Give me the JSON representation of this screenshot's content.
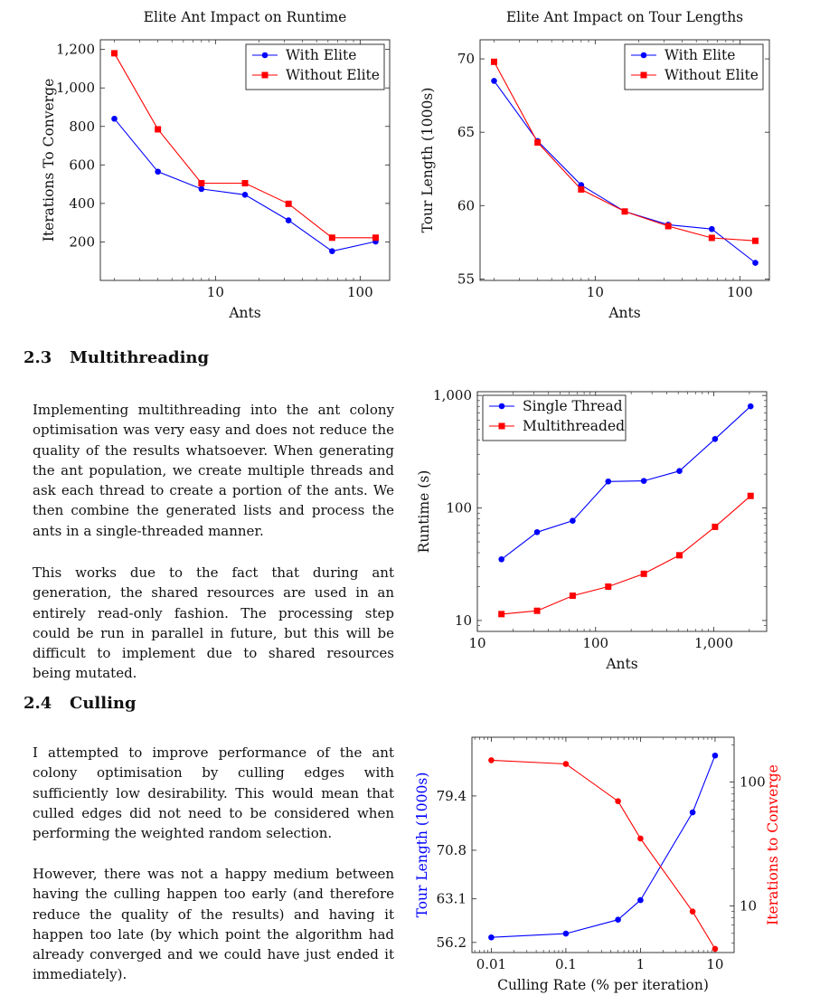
{
  "sections": [
    {
      "number": "2.3",
      "title": "Multithreading",
      "paragraphs": [
        "Implementing multithreading into the ant colony optimisation was very easy and does not reduce the quality of the results whatsoever. When generating the ant population, we create multiple threads and ask each thread to create a portion of the ants. We then combine the generated lists and process the ants in a single-threaded manner.",
        "This works due to the fact that during ant generation, the shared resources are used in an entirely read-only fashion. The processing step could be run in parallel in future, but this will be difficult to implement due to shared resources being mutated."
      ]
    },
    {
      "number": "2.4",
      "title": "Culling",
      "paragraphs": [
        "I attempted to improve performance of the ant colony optimisation by culling edges with sufficiently low desirability. This would mean that culled edges did not need to be considered when performing the weighted random selection.",
        "However, there was not a happy medium between having the culling happen too early (and therefore reduce the quality of the results) and having it happen too late (by which point the algorithm had already converged and we could have just ended it immediately)."
      ]
    }
  ],
  "colors": {
    "series_a": "#0000ff",
    "series_b": "#ff0000"
  },
  "chart_data": [
    {
      "type": "line",
      "title": "Elite Ant Impact on Runtime",
      "xlabel": "Ants",
      "ylabel": "Iterations To Converge",
      "xscale": "log",
      "xlim": [
        1.6,
        160
      ],
      "ylim": [
        0,
        1250
      ],
      "xticks": [
        10,
        100
      ],
      "xtick_labels": [
        "10",
        "100"
      ],
      "yticks": [
        200,
        400,
        600,
        800,
        1000,
        1200
      ],
      "ytick_labels": [
        "200",
        "400",
        "600",
        "800",
        "1,000",
        "1,200"
      ],
      "legend_position": "top-right",
      "x": [
        2,
        4,
        8,
        16,
        32,
        64,
        128
      ],
      "series": [
        {
          "name": "With Elite",
          "color": "#0000ff",
          "marker": "circle",
          "values": [
            840,
            565,
            475,
            445,
            312,
            152,
            202
          ]
        },
        {
          "name": "Without Elite",
          "color": "#ff0000",
          "marker": "square",
          "values": [
            1180,
            785,
            505,
            505,
            398,
            222,
            222
          ]
        }
      ]
    },
    {
      "type": "line",
      "title": "Elite Ant Impact on Tour Lengths",
      "xlabel": "Ants",
      "ylabel": "Tour Length (1000s)",
      "xscale": "log",
      "xlim": [
        1.6,
        160
      ],
      "ylim": [
        54.9,
        71.3
      ],
      "xticks": [
        10,
        100
      ],
      "xtick_labels": [
        "10",
        "100"
      ],
      "yticks": [
        55,
        60,
        65,
        70
      ],
      "ytick_labels": [
        "55",
        "60",
        "65",
        "70"
      ],
      "legend_position": "top-right",
      "x": [
        2,
        4,
        8,
        16,
        32,
        64,
        128
      ],
      "series": [
        {
          "name": "With Elite",
          "color": "#0000ff",
          "marker": "circle",
          "values": [
            68.5,
            64.4,
            61.4,
            59.6,
            58.7,
            58.4,
            56.1
          ]
        },
        {
          "name": "Without Elite",
          "color": "#ff0000",
          "marker": "square",
          "values": [
            69.8,
            64.3,
            61.1,
            59.6,
            58.6,
            57.8,
            57.6
          ]
        }
      ]
    },
    {
      "type": "line",
      "title": "",
      "xlabel": "Ants",
      "ylabel": "Runtime (s)",
      "xscale": "log",
      "yscale": "log",
      "xlim": [
        10,
        2800
      ],
      "ylim": [
        8,
        1080
      ],
      "xticks": [
        10,
        100,
        1000
      ],
      "xtick_labels": [
        "10",
        "100",
        "1,000"
      ],
      "yticks": [
        10,
        100,
        1000
      ],
      "ytick_labels": [
        "10",
        "100",
        "1,000"
      ],
      "legend_position": "top-left",
      "x": [
        16,
        32,
        64,
        128,
        256,
        512,
        1024,
        2048
      ],
      "series": [
        {
          "name": "Single Thread",
          "color": "#0000ff",
          "marker": "circle",
          "values": [
            35,
            61,
            77,
            172,
            174,
            213,
            410,
            800
          ]
        },
        {
          "name": "Multithreaded",
          "color": "#ff0000",
          "marker": "square",
          "values": [
            11.4,
            12.2,
            16.6,
            20,
            26,
            38,
            68,
            128
          ]
        }
      ]
    },
    {
      "type": "line",
      "title": "",
      "xlabel": "Culling Rate (% per iteration)",
      "ylabel": "Tour Length (1000s)",
      "ylabel_right": "Iterations to Converge",
      "xscale": "log",
      "xlim": [
        0.0055,
        18
      ],
      "ylim": [
        54.6,
        88.7
      ],
      "ylim_right": [
        4.2,
        230
      ],
      "yscale_right": "log",
      "xticks": [
        0.01,
        0.1,
        1,
        10
      ],
      "xtick_labels": [
        "0.01",
        "0.1",
        "1",
        "10"
      ],
      "yticks": [
        56.2,
        63.1,
        70.8,
        79.4
      ],
      "ytick_labels": [
        "56.2",
        "63.1",
        "70.8",
        "79.4"
      ],
      "yticks_right": [
        10,
        100
      ],
      "ytick_labels_right": [
        "10",
        "100"
      ],
      "x": [
        0.01,
        0.1,
        0.5,
        1,
        5,
        10
      ],
      "series": [
        {
          "name": "",
          "axis": "left",
          "color": "#0000ff",
          "marker": "circle",
          "values": [
            57.0,
            57.6,
            59.8,
            62.9,
            76.8,
            85.8
          ]
        },
        {
          "name": "",
          "axis": "right",
          "color": "#ff0000",
          "marker": "circle",
          "values": [
            150,
            140,
            70,
            35,
            9,
            4.5
          ]
        }
      ]
    }
  ]
}
